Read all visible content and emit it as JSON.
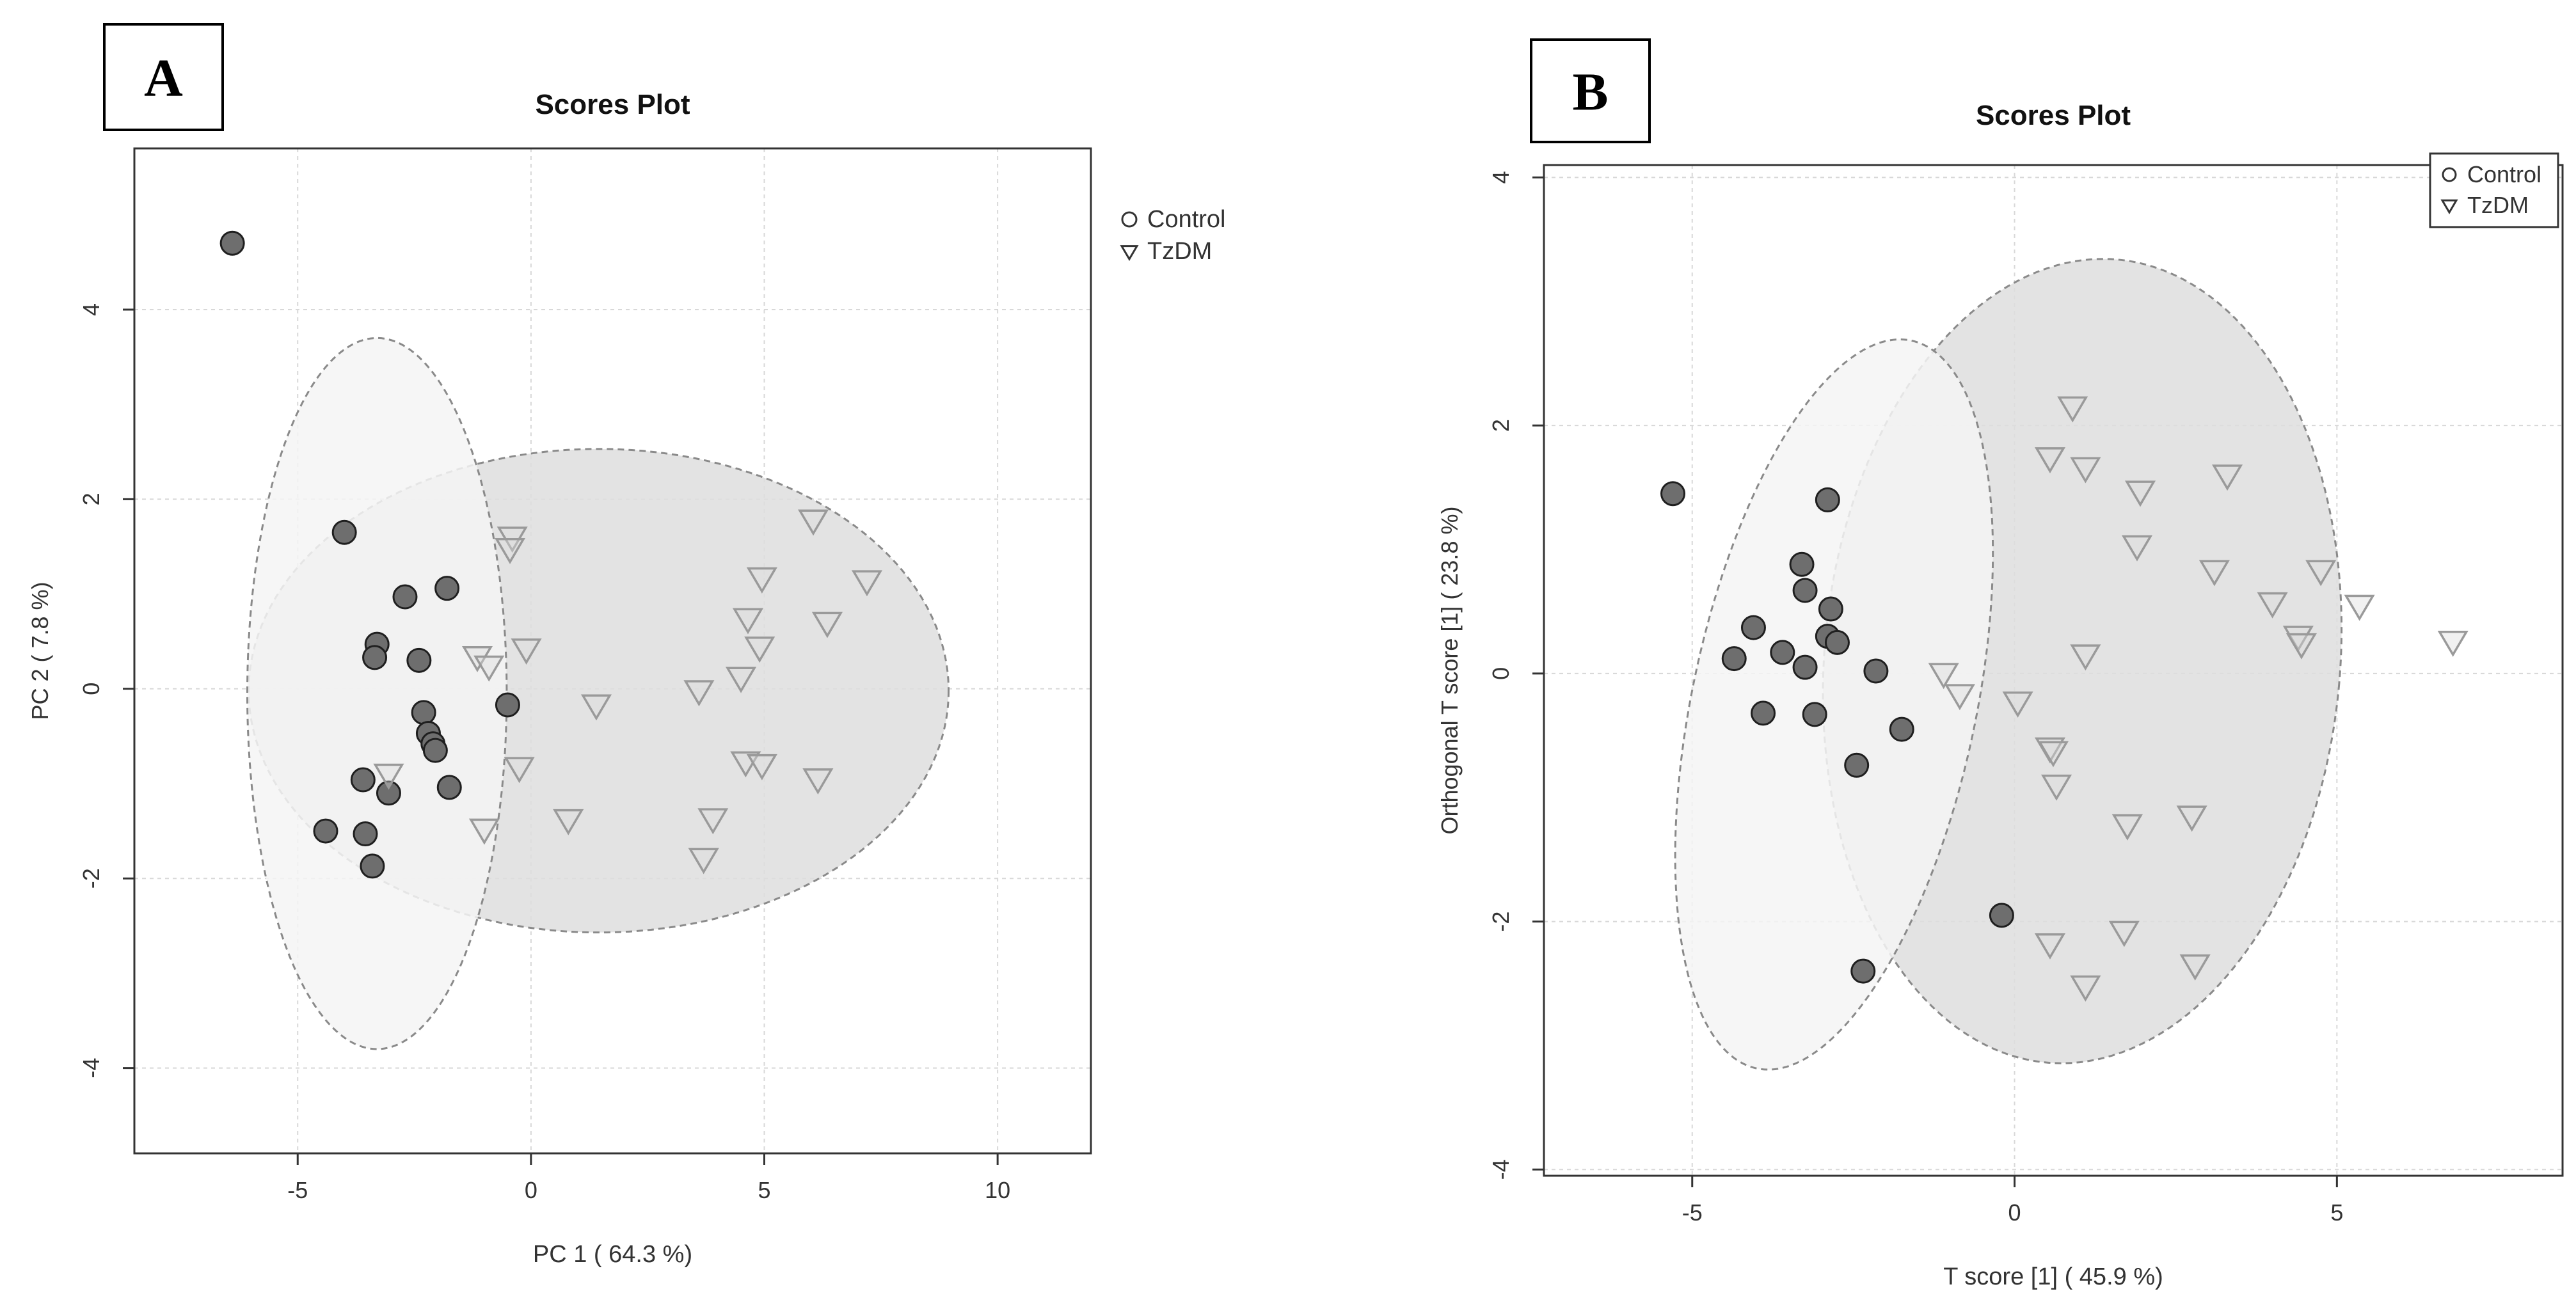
{
  "chart_data": [
    {
      "panel_label": "A",
      "type": "scatter",
      "title": "Scores Plot",
      "xlabel": "PC 1 ( 64.3 %)",
      "ylabel": "PC 2 ( 7.8 %)",
      "xlim": [
        -8.5,
        12
      ],
      "ylim": [
        -4.9,
        5.7
      ],
      "xticks": [
        -5,
        0,
        5,
        10
      ],
      "yticks": [
        -4,
        -2,
        0,
        2,
        4
      ],
      "grid": true,
      "legend_position": "top-right outside",
      "legend": [
        {
          "name": "Control",
          "marker": "circle"
        },
        {
          "name": "TzDM",
          "marker": "triangle-down"
        }
      ],
      "series": [
        {
          "name": "Control",
          "marker": "circle",
          "color": "#6e6e6e",
          "points": [
            [
              -6.4,
              4.7
            ],
            [
              -4.0,
              1.65
            ],
            [
              -2.7,
              0.97
            ],
            [
              -1.8,
              1.06
            ],
            [
              -3.3,
              0.47
            ],
            [
              -3.35,
              0.33
            ],
            [
              -2.4,
              0.3
            ],
            [
              -0.5,
              -0.17
            ],
            [
              -2.3,
              -0.25
            ],
            [
              -2.2,
              -0.47
            ],
            [
              -2.1,
              -0.58
            ],
            [
              -2.05,
              -0.65
            ],
            [
              -3.6,
              -0.96
            ],
            [
              -3.05,
              -1.1
            ],
            [
              -1.75,
              -1.04
            ],
            [
              -4.4,
              -1.5
            ],
            [
              -3.55,
              -1.53
            ],
            [
              -3.4,
              -1.87
            ]
          ]
        },
        {
          "name": "TzDM",
          "marker": "triangle-down",
          "color": "#9a9a9a",
          "points": [
            [
              -0.4,
              1.6
            ],
            [
              -0.45,
              1.48
            ],
            [
              -1.15,
              0.34
            ],
            [
              -0.9,
              0.24
            ],
            [
              -0.1,
              0.42
            ],
            [
              1.4,
              -0.17
            ],
            [
              -3.05,
              -0.9
            ],
            [
              -0.25,
              -0.83
            ],
            [
              -1.0,
              -1.48
            ],
            [
              0.8,
              -1.38
            ],
            [
              3.6,
              -0.02
            ],
            [
              4.5,
              0.12
            ],
            [
              4.65,
              0.74
            ],
            [
              4.9,
              0.44
            ],
            [
              4.95,
              1.17
            ],
            [
              6.05,
              1.78
            ],
            [
              7.2,
              1.14
            ],
            [
              6.35,
              0.7
            ],
            [
              4.6,
              -0.77
            ],
            [
              4.95,
              -0.8
            ],
            [
              6.15,
              -0.95
            ],
            [
              3.9,
              -1.37
            ],
            [
              3.7,
              -1.79
            ]
          ]
        }
      ],
      "ellipses": [
        {
          "group": "Control",
          "center": [
            -3.3,
            -0.05
          ],
          "semi_axis_x": 2.78,
          "semi_axis_y": 3.75,
          "color": "#f4f4f4"
        },
        {
          "group": "TzDM",
          "center": [
            1.45,
            -0.02
          ],
          "semi_axis_x": 7.5,
          "semi_axis_y": 2.55,
          "color": "#dedede"
        }
      ]
    },
    {
      "panel_label": "B",
      "type": "scatter",
      "title": "Scores Plot",
      "xlabel": "T score [1] ( 45.9 %)",
      "ylabel": "Orthogonal T score [1] ( 23.8 %)",
      "xlim": [
        -7.3,
        8.5
      ],
      "ylim": [
        -4.05,
        4.1
      ],
      "xticks": [
        -5,
        0,
        5
      ],
      "yticks": [
        -4,
        -2,
        0,
        2,
        4
      ],
      "grid": true,
      "legend_position": "top-right inside",
      "legend": [
        {
          "name": "Control",
          "marker": "circle"
        },
        {
          "name": "TzDM",
          "marker": "triangle-down"
        }
      ],
      "series": [
        {
          "name": "Control",
          "marker": "circle",
          "color": "#6e6e6e",
          "points": [
            [
              -5.3,
              1.45
            ],
            [
              -2.9,
              1.4
            ],
            [
              -3.3,
              0.88
            ],
            [
              -3.25,
              0.67
            ],
            [
              -2.85,
              0.52
            ],
            [
              -4.05,
              0.37
            ],
            [
              -2.9,
              0.3
            ],
            [
              -2.75,
              0.25
            ],
            [
              -3.6,
              0.17
            ],
            [
              -4.35,
              0.12
            ],
            [
              -3.25,
              0.05
            ],
            [
              -2.15,
              0.02
            ],
            [
              -3.9,
              -0.32
            ],
            [
              -3.1,
              -0.33
            ],
            [
              -1.75,
              -0.45
            ],
            [
              -2.45,
              -0.74
            ],
            [
              -0.2,
              -1.95
            ],
            [
              -2.35,
              -2.4
            ]
          ]
        },
        {
          "name": "TzDM",
          "marker": "triangle-down",
          "color": "#9a9a9a",
          "points": [
            [
              0.9,
              2.15
            ],
            [
              0.55,
              1.74
            ],
            [
              1.1,
              1.66
            ],
            [
              1.95,
              1.47
            ],
            [
              3.3,
              1.6
            ],
            [
              1.9,
              1.03
            ],
            [
              3.1,
              0.83
            ],
            [
              4.75,
              0.83
            ],
            [
              4.0,
              0.57
            ],
            [
              5.35,
              0.55
            ],
            [
              4.4,
              0.3
            ],
            [
              4.45,
              0.24
            ],
            [
              6.8,
              0.26
            ],
            [
              1.1,
              0.15
            ],
            [
              -1.1,
              0.0
            ],
            [
              -0.85,
              -0.17
            ],
            [
              0.05,
              -0.23
            ],
            [
              0.55,
              -0.6
            ],
            [
              0.6,
              -0.63
            ],
            [
              0.65,
              -0.9
            ],
            [
              1.75,
              -1.22
            ],
            [
              2.75,
              -1.15
            ],
            [
              0.55,
              -2.18
            ],
            [
              1.7,
              -2.08
            ],
            [
              2.8,
              -2.35
            ],
            [
              1.1,
              -2.52
            ]
          ]
        }
      ],
      "ellipses": [
        {
          "group": "Control",
          "center": [
            -2.8,
            -0.25
          ],
          "semi_axis_x": 2.2,
          "semi_axis_y": 3.0,
          "rotation_deg": 12,
          "color": "#f4f4f4"
        },
        {
          "group": "TzDM",
          "center": [
            1.05,
            0.1
          ],
          "semi_axis_x": 4.0,
          "semi_axis_y": 3.25,
          "rotation_deg": 5,
          "color": "#dedede"
        }
      ]
    }
  ]
}
